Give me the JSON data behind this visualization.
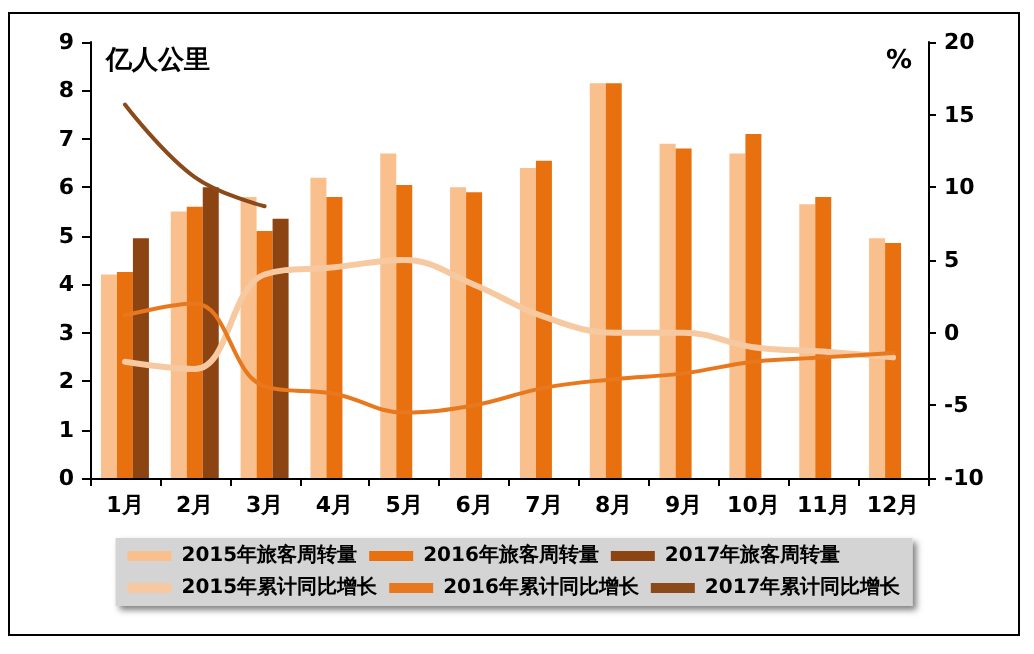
{
  "chart_data": {
    "type": "bar",
    "ylabel": "亿人公里",
    "y2label": "%",
    "categories": [
      "1月",
      "2月",
      "3月",
      "4月",
      "5月",
      "6月",
      "7月",
      "8月",
      "9月",
      "10月",
      "11月",
      "12月"
    ],
    "series": [
      {
        "name": "2015年旅客周转量",
        "color": "#f9bf8c",
        "values": [
          4.2,
          5.5,
          5.8,
          6.2,
          6.7,
          6.0,
          6.4,
          8.15,
          6.9,
          6.7,
          5.65,
          4.95
        ]
      },
      {
        "name": "2016年旅客周转量",
        "color": "#e8700f",
        "values": [
          4.25,
          5.6,
          5.1,
          5.8,
          6.05,
          5.9,
          6.55,
          8.15,
          6.8,
          7.1,
          5.8,
          4.85
        ]
      },
      {
        "name": "2017年旅客周转量",
        "color": "#8b4412",
        "values": [
          4.95,
          6.0,
          5.35,
          null,
          null,
          null,
          null,
          null,
          null,
          null,
          null,
          null
        ]
      },
      {
        "name": "2015年累计同比增长",
        "type": "line",
        "axis": "y2",
        "color": "#f7c9a0",
        "values": [
          -2,
          -2.5,
          4,
          4.5,
          5,
          3.3,
          1.1,
          0,
          0,
          -1,
          -1.3,
          -1.7
        ]
      },
      {
        "name": "2016年累计同比增长",
        "type": "line",
        "axis": "y2",
        "color": "#e8781e",
        "values": [
          1.2,
          2,
          -3.7,
          -4.2,
          -5.5,
          -5,
          -3.8,
          -3.2,
          -2.8,
          -2,
          -1.7,
          -1.4
        ]
      },
      {
        "name": "2017年累计同比增长",
        "type": "line",
        "axis": "y2",
        "color": "#8b4a1a",
        "values": [
          15.7,
          10.7,
          8.7,
          null,
          null,
          null,
          null,
          null,
          null,
          null,
          null,
          null
        ]
      }
    ],
    "ylim": [
      0,
      9
    ],
    "yticks": [
      0,
      1,
      2,
      3,
      4,
      5,
      6,
      7,
      8,
      9
    ],
    "y2lim": [
      -10,
      20
    ],
    "y2ticks": [
      -10,
      -5,
      0,
      5,
      10,
      15,
      20
    ],
    "grid": false,
    "legend": "bottom",
    "marker": "none",
    "line_style": "solid"
  }
}
